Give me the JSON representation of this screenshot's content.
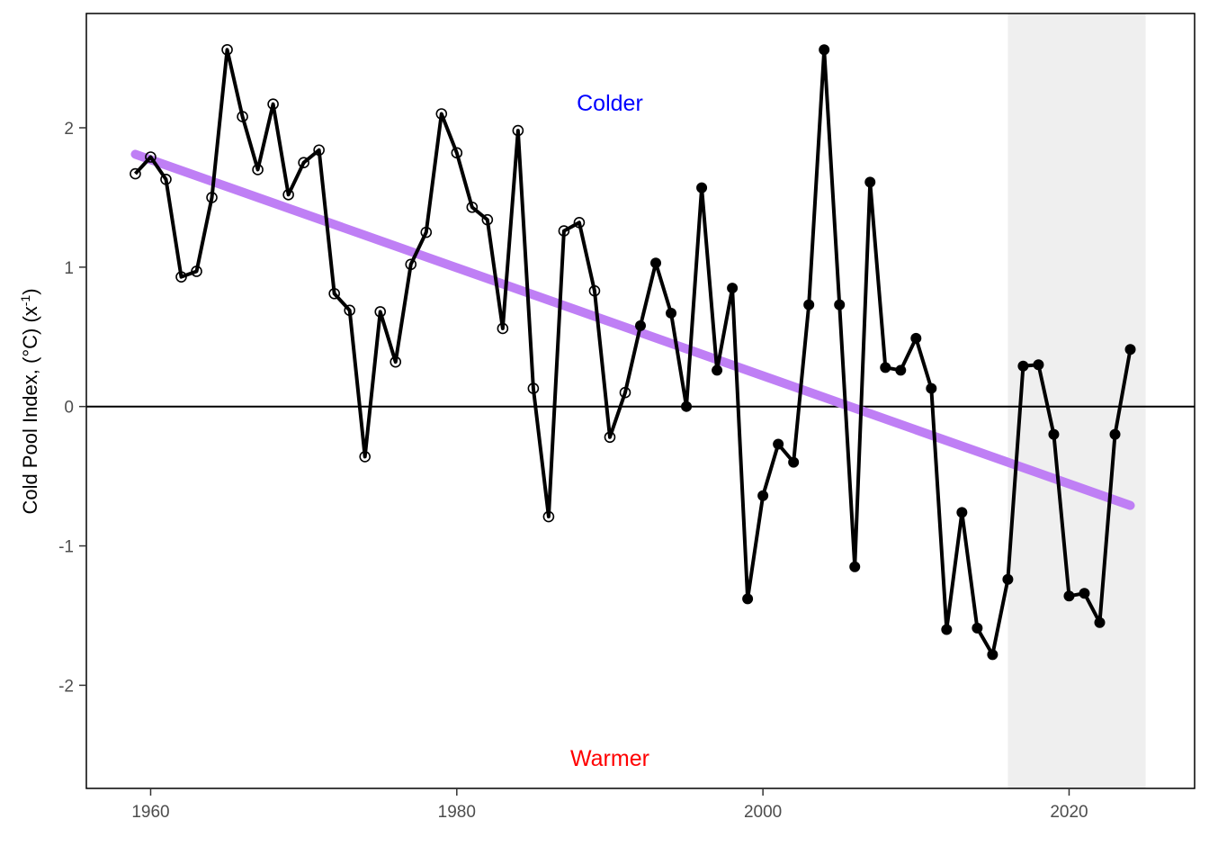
{
  "chart_data": {
    "type": "line",
    "ylabel_prefix": "Cold Pool Index, (°C) (x",
    "ylabel_sup": "-1",
    "ylabel_suffix": ")",
    "xlim": [
      1955.8,
      2028.2
    ],
    "ylim": [
      -2.74,
      2.82
    ],
    "x_ticks": [
      1960,
      1980,
      2000,
      2020
    ],
    "y_ticks": [
      -2,
      -1,
      0,
      1,
      2
    ],
    "grid": false,
    "zero_line": 0,
    "shaded_region": {
      "x": [
        2016,
        2025
      ],
      "color": "#efefef"
    },
    "annotations": [
      {
        "text": "Colder",
        "x": 1990,
        "y": 2.18,
        "color": "#0000ff"
      },
      {
        "text": "Warmer",
        "x": 1990,
        "y": -2.52,
        "color": "#ff0000"
      }
    ],
    "trend": {
      "x": [
        1959,
        2024
      ],
      "y": [
        1.81,
        -0.71
      ],
      "color": "#bf7ff5"
    },
    "series": [
      {
        "color": "#000000",
        "open_marker_until": 1991,
        "points": [
          {
            "x": 1959,
            "y": 1.67
          },
          {
            "x": 1960,
            "y": 1.79
          },
          {
            "x": 1961,
            "y": 1.63
          },
          {
            "x": 1962,
            "y": 0.93
          },
          {
            "x": 1963,
            "y": 0.97
          },
          {
            "x": 1964,
            "y": 1.5
          },
          {
            "x": 1965,
            "y": 2.56
          },
          {
            "x": 1966,
            "y": 2.08
          },
          {
            "x": 1967,
            "y": 1.7
          },
          {
            "x": 1968,
            "y": 2.17
          },
          {
            "x": 1969,
            "y": 1.52
          },
          {
            "x": 1970,
            "y": 1.75
          },
          {
            "x": 1971,
            "y": 1.84
          },
          {
            "x": 1972,
            "y": 0.81
          },
          {
            "x": 1973,
            "y": 0.69
          },
          {
            "x": 1974,
            "y": -0.36
          },
          {
            "x": 1975,
            "y": 0.68
          },
          {
            "x": 1976,
            "y": 0.32
          },
          {
            "x": 1977,
            "y": 1.02
          },
          {
            "x": 1978,
            "y": 1.25
          },
          {
            "x": 1979,
            "y": 2.1
          },
          {
            "x": 1980,
            "y": 1.82
          },
          {
            "x": 1981,
            "y": 1.43
          },
          {
            "x": 1982,
            "y": 1.34
          },
          {
            "x": 1983,
            "y": 0.56
          },
          {
            "x": 1984,
            "y": 1.98
          },
          {
            "x": 1985,
            "y": 0.13
          },
          {
            "x": 1986,
            "y": -0.79
          },
          {
            "x": 1987,
            "y": 1.26
          },
          {
            "x": 1988,
            "y": 1.32
          },
          {
            "x": 1989,
            "y": 0.83
          },
          {
            "x": 1990,
            "y": -0.22
          },
          {
            "x": 1991,
            "y": 0.1
          },
          {
            "x": 1992,
            "y": 0.58
          },
          {
            "x": 1993,
            "y": 1.03
          },
          {
            "x": 1994,
            "y": 0.67
          },
          {
            "x": 1995,
            "y": 0.0
          },
          {
            "x": 1996,
            "y": 1.57
          },
          {
            "x": 1997,
            "y": 0.26
          },
          {
            "x": 1998,
            "y": 0.85
          },
          {
            "x": 1999,
            "y": -1.38
          },
          {
            "x": 2000,
            "y": -0.64
          },
          {
            "x": 2001,
            "y": -0.27
          },
          {
            "x": 2002,
            "y": -0.4
          },
          {
            "x": 2003,
            "y": 0.73
          },
          {
            "x": 2004,
            "y": 2.56
          },
          {
            "x": 2005,
            "y": 0.73
          },
          {
            "x": 2006,
            "y": -1.15
          },
          {
            "x": 2007,
            "y": 1.61
          },
          {
            "x": 2008,
            "y": 0.28
          },
          {
            "x": 2009,
            "y": 0.26
          },
          {
            "x": 2010,
            "y": 0.49
          },
          {
            "x": 2011,
            "y": 0.13
          },
          {
            "x": 2012,
            "y": -1.6
          },
          {
            "x": 2013,
            "y": -0.76
          },
          {
            "x": 2014,
            "y": -1.59
          },
          {
            "x": 2015,
            "y": -1.78
          },
          {
            "x": 2016,
            "y": -1.24
          },
          {
            "x": 2017,
            "y": 0.29
          },
          {
            "x": 2018,
            "y": 0.3
          },
          {
            "x": 2019,
            "y": -0.2
          },
          {
            "x": 2020,
            "y": -1.36
          },
          {
            "x": 2021,
            "y": -1.34
          },
          {
            "x": 2022,
            "y": -1.55
          },
          {
            "x": 2023,
            "y": -0.2
          },
          {
            "x": 2024,
            "y": 0.41
          }
        ]
      }
    ]
  }
}
